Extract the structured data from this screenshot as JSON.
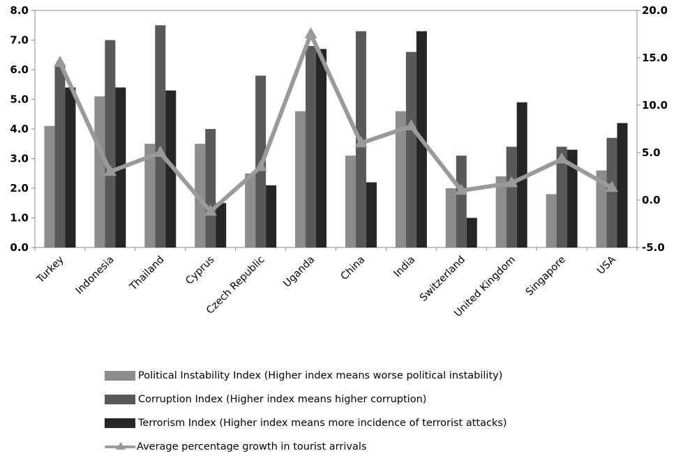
{
  "chart_data": {
    "type": "bar",
    "categories": [
      "Turkey",
      "Indonesia",
      "Thailand",
      "Cyprus",
      "Czech Republic",
      "Uganda",
      "China",
      "India",
      "Switzerland",
      "United Kingdom",
      "Singapore",
      "USA"
    ],
    "series": [
      {
        "name": "Political Instability Index (Higher index means worse political instability)",
        "type": "bar",
        "axis": "left",
        "values": [
          4.1,
          5.1,
          3.5,
          3.5,
          2.5,
          4.6,
          3.1,
          4.6,
          2.0,
          2.4,
          1.8,
          2.6
        ],
        "color": "#8c8c8c"
      },
      {
        "name": "Corruption Index (Higher index means higher corruption)",
        "type": "bar",
        "axis": "left",
        "values": [
          6.1,
          7.0,
          7.5,
          4.0,
          5.8,
          6.8,
          7.3,
          6.6,
          3.1,
          3.4,
          3.4,
          3.7
        ],
        "color": "#595959"
      },
      {
        "name": "Terrorism Index (Higher index means more incidence of terrorist attacks)",
        "type": "bar",
        "axis": "left",
        "values": [
          5.4,
          5.4,
          5.3,
          1.5,
          2.1,
          6.7,
          2.2,
          7.3,
          1.0,
          4.9,
          3.3,
          4.2
        ],
        "color": "#262626"
      },
      {
        "name": "Average percentage growth in tourist arrivals",
        "type": "line",
        "axis": "right",
        "marker": "triangle",
        "values": [
          14.5,
          3.0,
          5.0,
          -1.2,
          3.5,
          17.5,
          6.0,
          7.8,
          1.0,
          1.8,
          4.3,
          1.3
        ],
        "color": "#9a9a9a"
      }
    ],
    "y_left": {
      "min": 0,
      "max": 8,
      "step": 1,
      "tick_labels": [
        "0.0",
        "1.0",
        "2.0",
        "3.0",
        "4.0",
        "5.0",
        "6.0",
        "7.0",
        "8.0"
      ]
    },
    "y_right": {
      "min": -5,
      "max": 20,
      "step": 5,
      "tick_labels": [
        "-5.0",
        "0.0",
        "5.0",
        "10.0",
        "15.0",
        "20.0"
      ]
    },
    "grid": false,
    "legend_position": "bottom"
  }
}
